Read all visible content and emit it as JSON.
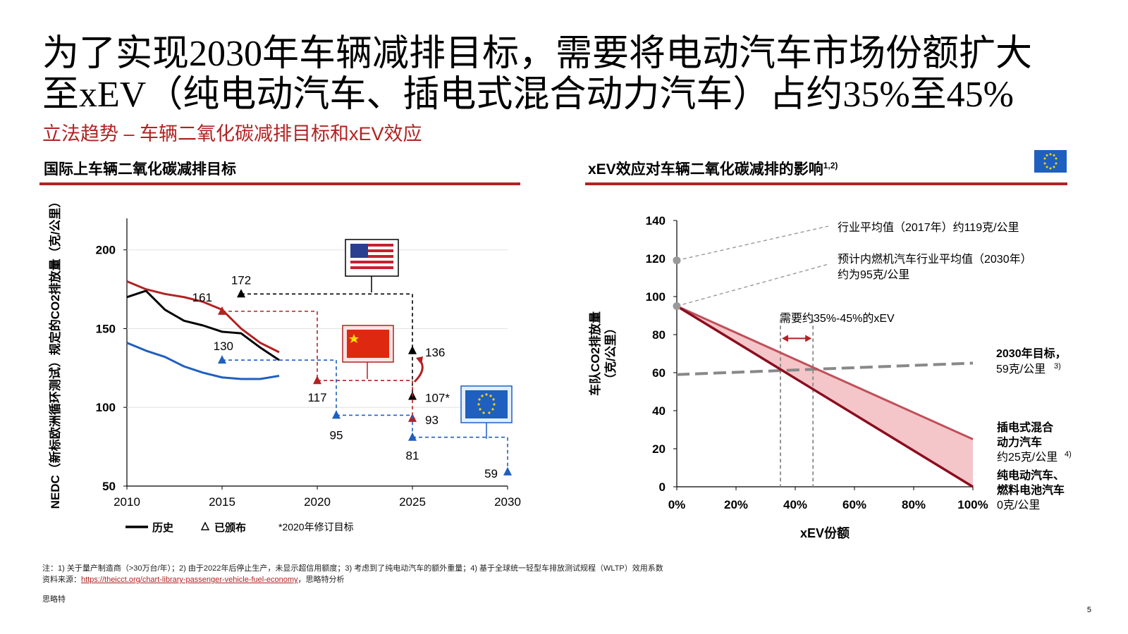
{
  "title_line1": "为了实现2030年车辆减排目标，需要将电动汽车市场份额扩大",
  "title_line2": "至xEV（纯电动汽车、插电式混合动力汽车）占约35%至45%",
  "subtitle": "立法趋势 – 车辆二氧化碳减排目标和xEV效应",
  "left_panel_title": "国际上车辆二氧化碳减排目标",
  "right_panel_title": "xEV效应对车辆二氧化碳减排的影响",
  "right_panel_title_sup": "1,2)",
  "colors": {
    "accent": "#b22222",
    "history_black": "#000000",
    "us_red": "#b22222",
    "eu_blue": "#1f5fbf",
    "china_red": "#b22222"
  },
  "chart_data": [
    {
      "type": "line",
      "ylabel": "NEDC（新标欧洲循环测试）规定的CO2排放量（克/公里）",
      "xlim": [
        2010,
        2030
      ],
      "ylim": [
        50,
        220
      ],
      "x_ticks": [
        "2010",
        "2015",
        "2020",
        "2025",
        "2030"
      ],
      "y_ticks": [
        "50",
        "100",
        "150",
        "200"
      ],
      "series": [
        {
          "name": "US",
          "color": "#000000",
          "x": [
            2010,
            2011,
            2012,
            2013,
            2014,
            2015,
            2016,
            2017,
            2018
          ],
          "y": [
            170,
            174,
            162,
            155,
            152,
            148,
            147,
            138,
            130
          ]
        },
        {
          "name": "China",
          "color": "#b22222",
          "x": [
            2010,
            2011,
            2012,
            2013,
            2014,
            2015,
            2016,
            2017,
            2018
          ],
          "y": [
            180,
            175,
            172,
            170,
            167,
            162,
            150,
            141,
            135
          ]
        },
        {
          "name": "EU",
          "color": "#1f5fbf",
          "x": [
            2010,
            2011,
            2012,
            2013,
            2014,
            2015,
            2016,
            2017,
            2018
          ],
          "y": [
            141,
            136,
            132,
            126,
            122,
            119,
            118,
            118,
            120
          ]
        }
      ],
      "targets": [
        {
          "color": "#000000",
          "points": [
            [
              2016,
              172,
              "172"
            ],
            [
              2025,
              136,
              "136"
            ],
            [
              2025,
              107,
              "107*"
            ]
          ]
        },
        {
          "color": "#b22222",
          "points": [
            [
              2015,
              161,
              "161"
            ],
            [
              2020,
              117,
              "117"
            ],
            [
              2025,
              93,
              "93"
            ]
          ]
        },
        {
          "color": "#1f5fbf",
          "points": [
            [
              2015,
              130,
              "130"
            ],
            [
              2021,
              95,
              "95"
            ],
            [
              2025,
              81,
              "81"
            ],
            [
              2030,
              59,
              "59"
            ]
          ]
        }
      ],
      "legend": {
        "history": "历史",
        "promulgated": "已颁布",
        "note": "*2020年修订目标"
      }
    },
    {
      "type": "area",
      "ylabel_line1": "车队CO2排放量",
      "ylabel_line2": "（克/公里）",
      "xlabel": "xEV份额",
      "xlim": [
        0,
        100
      ],
      "ylim": [
        0,
        140
      ],
      "x_ticks": [
        "0%",
        "20%",
        "40%",
        "60%",
        "80%",
        "100%"
      ],
      "y_ticks": [
        "0",
        "20",
        "40",
        "60",
        "80",
        "100",
        "120",
        "140"
      ],
      "series": [
        {
          "name": "插电式混合动力汽车",
          "x": [
            0,
            100
          ],
          "y": [
            95,
            25
          ],
          "color": "#c0505a"
        },
        {
          "name": "纯电动汽车、燃料电池汽车",
          "x": [
            0,
            100
          ],
          "y": [
            95,
            0
          ],
          "color": "#8b0d1e"
        },
        {
          "name": "2030年目标",
          "x": [
            0,
            100
          ],
          "y": [
            59,
            65
          ],
          "color": "#888888"
        }
      ],
      "markers": [
        {
          "x": 0,
          "y": 119
        },
        {
          "x": 0,
          "y": 95
        }
      ],
      "range_band": [
        35,
        46
      ],
      "annotations": {
        "industry_avg": "行业平均值（2017年）约119克/公里",
        "ice_line1": "预计内燃机汽车行业平均值（2030年）",
        "ice_line2": "约为95克/公里",
        "need_xev": "需要约35%-45%的xEV",
        "target_2030_line1": "2030年目标，",
        "target_2030_line2": "59克/公里",
        "target_2030_sup": "3)",
        "phev_line1": "插电式混合",
        "phev_line2": "动力汽车",
        "phev_line3": "约25克/公里",
        "phev_sup": "4)",
        "bev_line1": "纯电动汽车、",
        "bev_line2": "燃料电池汽车",
        "bev_line3": "0克/公里"
      }
    }
  ],
  "footnote_line1": "注：1) 关于量产制造商（>30万台/年）；2) 由于2022年后停止生产，未显示超信用额度；3) 考虑到了纯电动汽车的额外重量；4) 基于全球统一轻型车排放测试规程（WLTP）效用系数",
  "source_label": "资料来源：",
  "source_link": "https://theicct.org/chart-library-passenger-vehicle-fuel-economy",
  "source_suffix": "，思略特分析",
  "company": "思略特",
  "page_number": "5"
}
